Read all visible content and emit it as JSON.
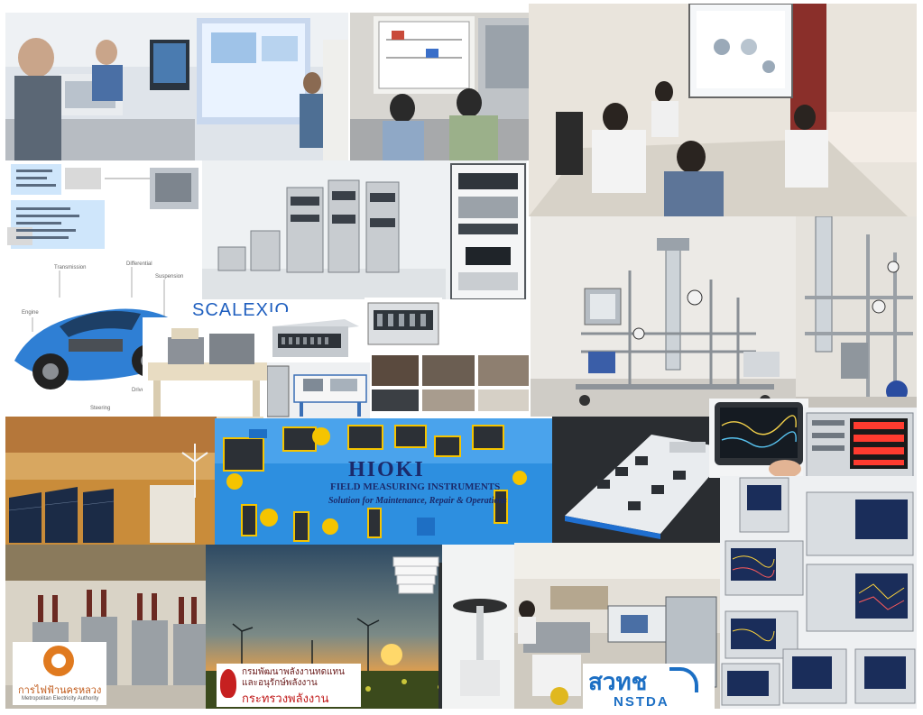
{
  "collage": {
    "title": "Engineering training, test systems and measuring instruments collage"
  },
  "texts": {
    "scalexio_label": "SCALEXIO",
    "hioki_brand": "HIOKI",
    "hioki_subtitle": "FIELD MEASURING INSTRUMENTS",
    "hioki_tagline": "Solution for Maintenance, Repair & Operations",
    "diagram_labels": {
      "transmission": "Transmission",
      "differential": "Differential",
      "suspension": "Suspension",
      "engine": "Engine",
      "driveshafts": "Driveshafts",
      "steering": "Steering"
    }
  },
  "logos": {
    "mea_thai": "การไฟฟ้านครหลวง",
    "mea_english": "Metropolitan Electricity Authority",
    "dede_line1": "กรมพัฒนาพลังงานทดแทน",
    "dede_line2": "และอนุรักษ์พลังงาน",
    "dede_line3": "กระทรวงพลังงาน",
    "nstda_thai": "สวทช",
    "nstda_english": "NSTDA"
  },
  "colors": {
    "hioki_panel": "#2d8fe0",
    "mea_orange": "#e07a1f",
    "dede_red": "#c62020",
    "nstda_blue": "#1c6fc4",
    "scalexio_blue": "#1f5fbf"
  }
}
